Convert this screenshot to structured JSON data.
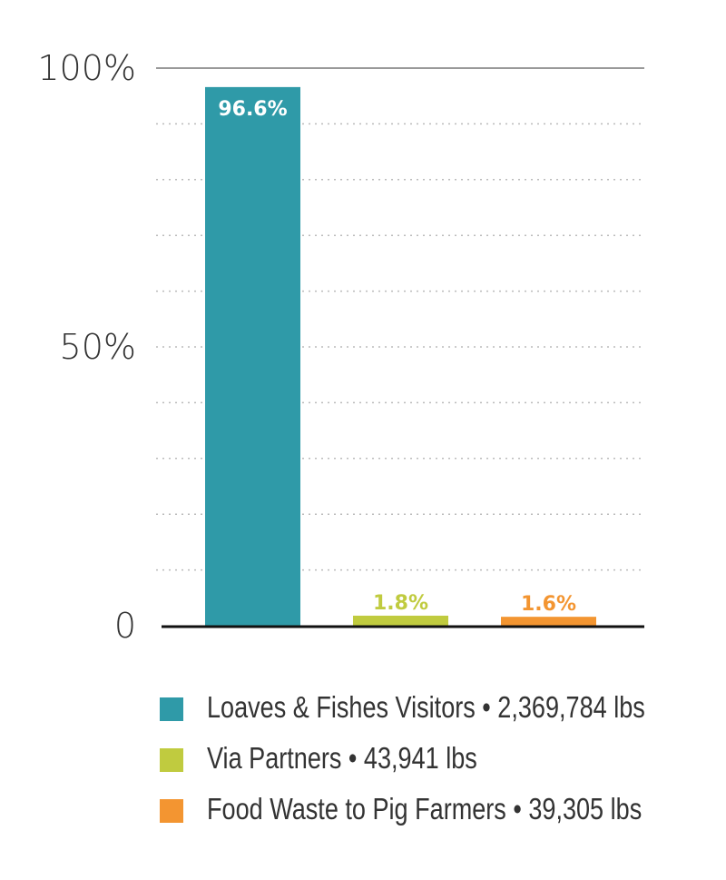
{
  "chart_data": {
    "type": "bar",
    "categories": [
      "Loaves & Fishes Visitors",
      "Via Partners",
      "Food Waste to Pig Farmers"
    ],
    "values": [
      96.6,
      1.8,
      1.6
    ],
    "data_labels": [
      "96.6%",
      "1.8%",
      "1.6%"
    ],
    "colors": [
      "#2f9aa8",
      "#c0cb3f",
      "#f39531"
    ],
    "ylim": [
      0,
      100
    ],
    "yticks": [
      {
        "value": 100,
        "label": "100%"
      },
      {
        "value": 50,
        "label": "50%"
      },
      {
        "value": 0,
        "label": "0"
      }
    ],
    "grid": "dotted every 10%",
    "xlabel": "",
    "ylabel": "",
    "title": "",
    "legend_position": "bottom",
    "legend": [
      {
        "label": "Loaves & Fishes Visitors • 2,369,784 lbs",
        "color": "#2f9aa8"
      },
      {
        "label": "Via Partners • 43,941 lbs",
        "color": "#c0cb3f"
      },
      {
        "label": "Food Waste to Pig Farmers • 39,305 lbs",
        "color": "#f39531"
      }
    ]
  }
}
